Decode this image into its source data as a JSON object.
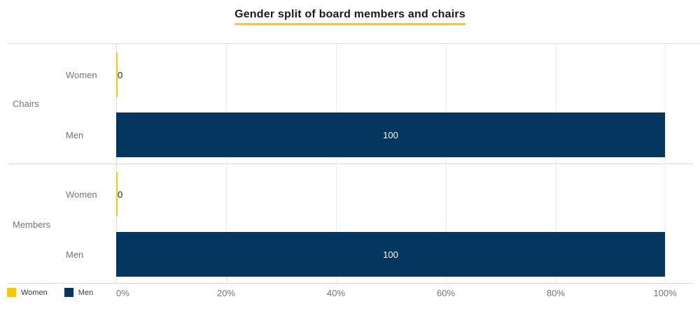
{
  "title": "Gender split of board members and chairs",
  "colors": {
    "women": "#F5C518",
    "men": "#05365F",
    "title_underline": "#FFC61E"
  },
  "legend": {
    "items": [
      {
        "label": "Women",
        "color": "#F5C518"
      },
      {
        "label": "Men",
        "color": "#05365F"
      }
    ]
  },
  "x_axis": {
    "ticks": [
      {
        "label": "0%",
        "value": 0
      },
      {
        "label": "20%",
        "value": 20
      },
      {
        "label": "40%",
        "value": 40
      },
      {
        "label": "60%",
        "value": 60
      },
      {
        "label": "80%",
        "value": 80
      },
      {
        "label": "100%",
        "value": 100
      }
    ]
  },
  "chart_data": {
    "type": "bar",
    "orientation": "horizontal",
    "title": "Gender split of board members and chairs",
    "categories": [
      "Chairs",
      "Members"
    ],
    "series": [
      {
        "name": "Women",
        "values": [
          0,
          0
        ],
        "color": "#F5C518"
      },
      {
        "name": "Men",
        "values": [
          100,
          100
        ],
        "color": "#05365F"
      }
    ],
    "xlim": [
      0,
      100
    ],
    "x_tick_labels": [
      "0%",
      "20%",
      "40%",
      "60%",
      "80%",
      "100%"
    ],
    "grid": true,
    "legend_position": "bottom-left",
    "groups": [
      {
        "label": "Chairs",
        "bars": [
          {
            "series": "Women",
            "label": "Women",
            "value": 0,
            "value_label": "0"
          },
          {
            "series": "Men",
            "label": "Men",
            "value": 100,
            "value_label": "100"
          }
        ]
      },
      {
        "label": "Members",
        "bars": [
          {
            "series": "Women",
            "label": "Women",
            "value": 0,
            "value_label": "0"
          },
          {
            "series": "Men",
            "label": "Men",
            "value": 100,
            "value_label": "100"
          }
        ]
      }
    ]
  }
}
